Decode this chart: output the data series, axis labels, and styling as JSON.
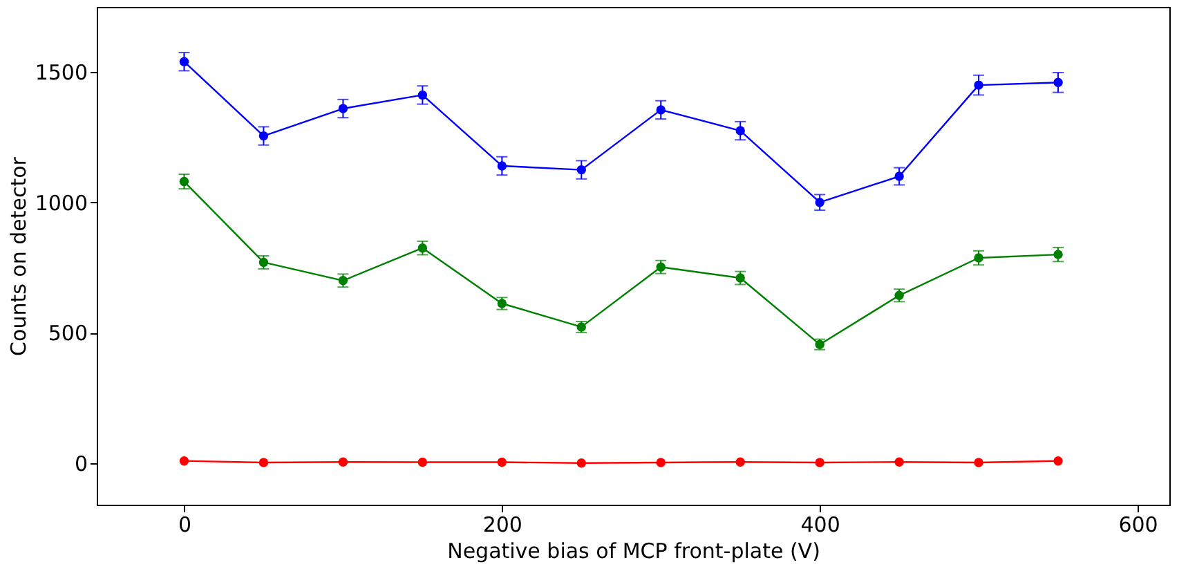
{
  "chart_data": {
    "type": "line",
    "xlabel": "Negative bias of MCP front-plate (V)",
    "ylabel": "Counts on detector",
    "x": [
      0,
      50,
      100,
      150,
      200,
      250,
      300,
      350,
      400,
      450,
      500,
      550
    ],
    "xlim": [
      -55,
      620
    ],
    "xticks": [
      0,
      200,
      400,
      600
    ],
    "ylim": [
      -160,
      1750
    ],
    "yticks": [
      0,
      500,
      1000,
      1500
    ],
    "marker": "circle",
    "grid": false,
    "series": [
      {
        "color": "#0000ff",
        "values": [
          1540,
          1255,
          1360,
          1412,
          1140,
          1125,
          1355,
          1275,
          1000,
          1100,
          1450,
          1460
        ],
        "errors": [
          35,
          35,
          35,
          35,
          35,
          35,
          35,
          35,
          30,
          33,
          38,
          38
        ]
      },
      {
        "color": "#008000",
        "values": [
          1080,
          770,
          700,
          825,
          612,
          522,
          752,
          710,
          455,
          643,
          787,
          800
        ],
        "errors": [
          28,
          25,
          25,
          26,
          23,
          21,
          25,
          25,
          20,
          24,
          27,
          27
        ]
      },
      {
        "color": "#ff0000",
        "values": [
          8,
          2,
          4,
          3,
          3,
          0,
          2,
          4,
          2,
          4,
          2,
          8
        ]
      }
    ]
  }
}
